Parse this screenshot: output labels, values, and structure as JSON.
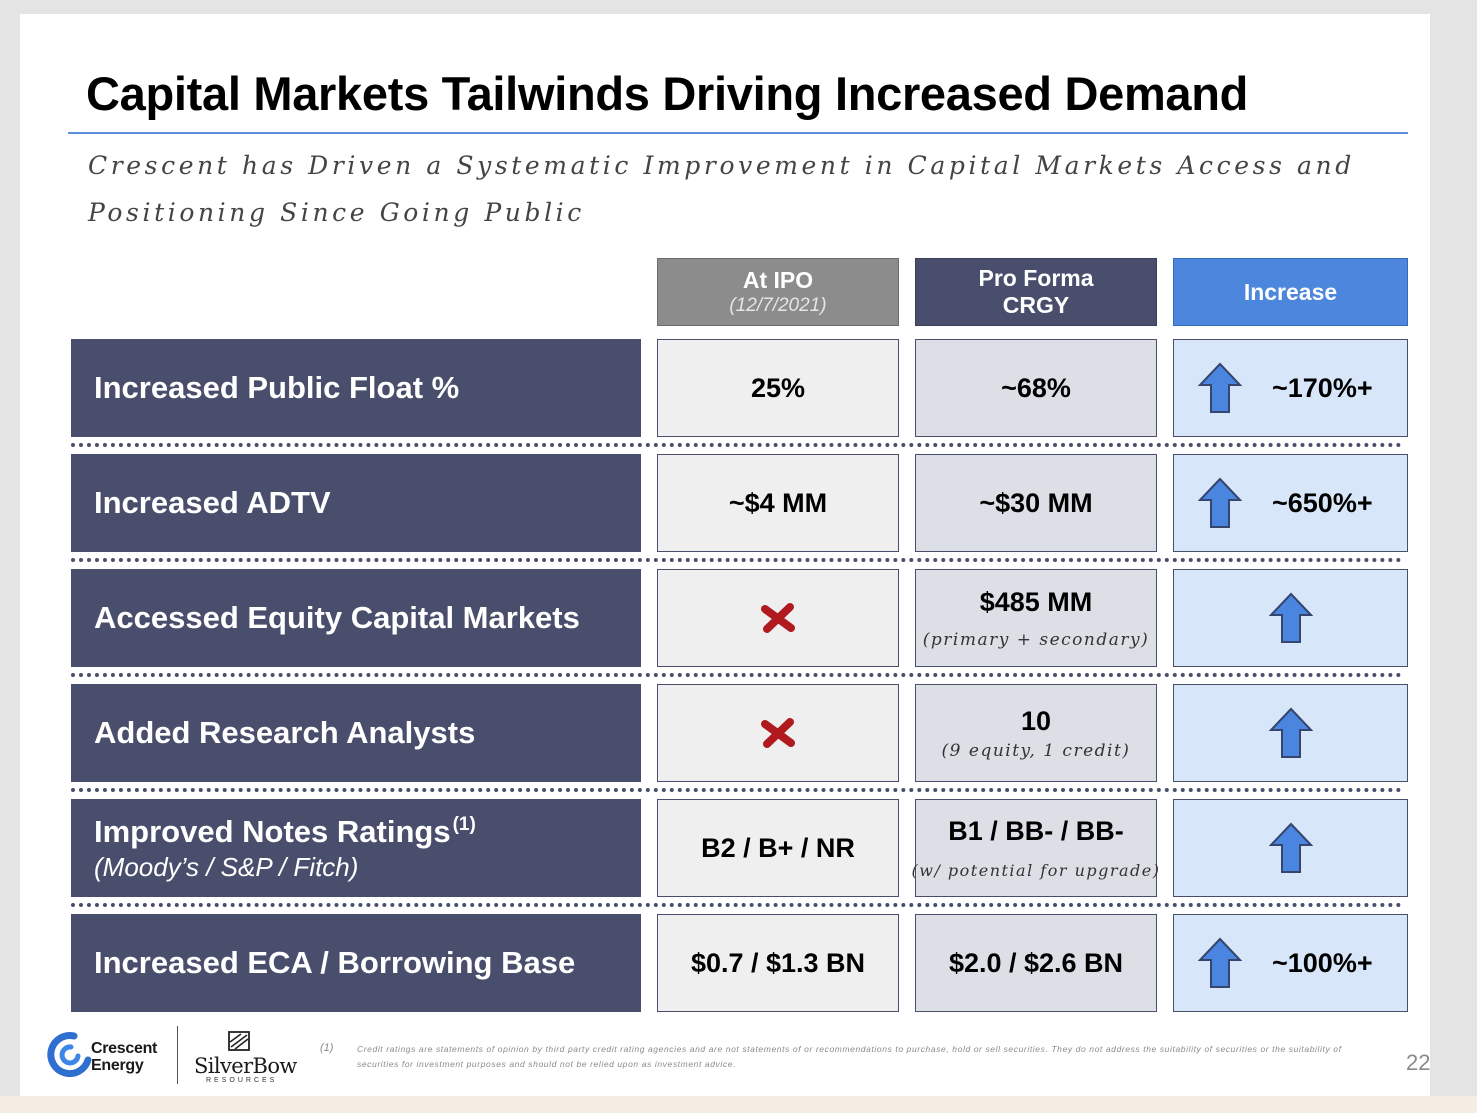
{
  "title": "Capital Markets Tailwinds Driving Increased Demand",
  "subtitle": "Crescent has Driven a Systematic Improvement in Capital Markets Access and Positioning Since Going Public",
  "headers": {
    "ipo": "At IPO",
    "ipo_date": "(12/7/2021)",
    "pro_forma_line1": "Pro Forma",
    "pro_forma_line2": "CRGY",
    "increase": "Increase"
  },
  "rows": [
    {
      "label": "Increased Public Float %",
      "ipo": "25%",
      "pro_forma": "~68%",
      "increase": "~170%+"
    },
    {
      "label": "Increased ADTV",
      "ipo": "~$4 MM",
      "pro_forma": "~$30 MM",
      "increase": "~650%+"
    },
    {
      "label": "Accessed Equity Capital Markets",
      "ipo_icon": "red-x-icon",
      "pro_forma": "$485 MM",
      "pro_forma_note": "(primary + secondary)"
    },
    {
      "label": "Added Research Analysts",
      "ipo_icon": "red-x-icon",
      "pro_forma": "10",
      "pro_forma_note": "(9 equity, 1 credit)"
    },
    {
      "label": "Improved Notes Ratings",
      "label_sup": "(1)",
      "label_sub": "(Moody’s / S&P / Fitch)",
      "ipo": "B2 / B+ / NR",
      "pro_forma": "B1 / BB- / BB-",
      "pro_forma_note": "(w/ potential for upgrade)"
    },
    {
      "label": "Increased ECA / Borrowing Base",
      "ipo": "$0.7 / $1.3 BN",
      "pro_forma": "$2.0 / $2.6 BN",
      "increase": "~100%+"
    }
  ],
  "footer": {
    "crescent_line1": "Crescent",
    "crescent_line2": "Energy",
    "silverbow": "SilverBow",
    "silverbow_sub": "RESOURCES",
    "footnote_num": "(1)",
    "footnote": "Credit ratings are statements of opinion by third party credit rating agencies and are not statements of or recommendations to purchase, hold or sell securities. They do not address the suitability of securities or the suitability of securities for investment purposes and should not be relied upon as investment advice.",
    "page_number": "22"
  },
  "colors": {
    "label_bg": "#4a4e6d",
    "ipo_header": "#8c8c8c",
    "increase_header": "#4c86dd",
    "arrow": "#4a86e0",
    "x_mark": "#b0191d",
    "title_rule": "#5b8fd9"
  }
}
